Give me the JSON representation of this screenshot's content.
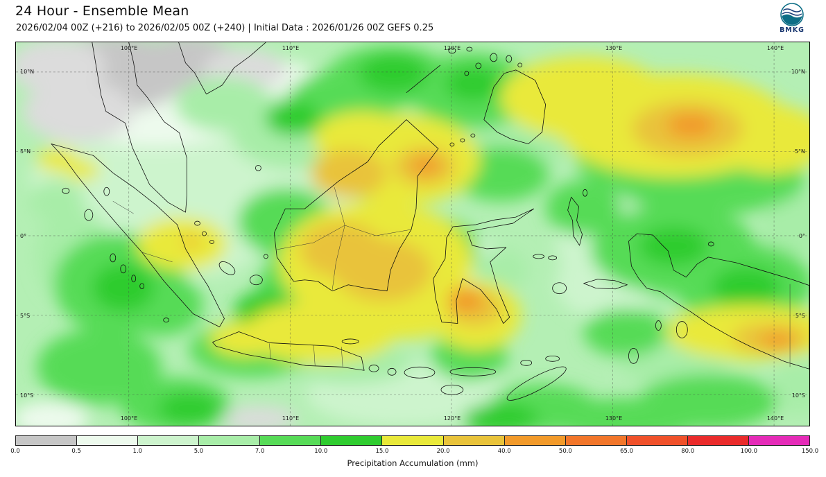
{
  "header": {
    "title": "24 Hour - Ensemble Mean",
    "subtitle": "2026/02/04 00Z (+216) to 2026/02/05 00Z (+240) | Initial Data : 2026/01/26 00Z GEFS 0.25",
    "logo_label": "BMKG"
  },
  "map": {
    "lat_labels": [
      "10°N",
      "5°N",
      "0°",
      "5°S",
      "10°S"
    ],
    "lon_labels": [
      "100°E",
      "110°E",
      "120°E",
      "130°E",
      "140°E"
    ]
  },
  "colorbar": {
    "label": "Precipitation Accumulation (mm)",
    "ticks": [
      "0.0",
      "0.5",
      "1.0",
      "5.0",
      "7.0",
      "10.0",
      "15.0",
      "20.0",
      "40.0",
      "50.0",
      "65.0",
      "80.0",
      "100.0",
      "150.0"
    ],
    "colors": [
      "#c6c6c6",
      "#edfaed",
      "#cdf4cd",
      "#a8eda8",
      "#57db57",
      "#2fcc2f",
      "#e9e93a",
      "#e9c33a",
      "#f29a2a",
      "#f2762a",
      "#f0512a",
      "#ea2b2b",
      "#e52bb8"
    ]
  }
}
